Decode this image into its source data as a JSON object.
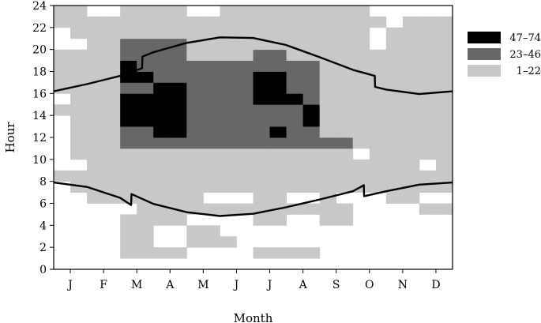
{
  "chart_data": {
    "type": "heatmap",
    "title": "",
    "xlabel": "Month",
    "ylabel": "Hour",
    "x_ticks": [
      "J",
      "F",
      "M",
      "A",
      "M",
      "J",
      "J",
      "A",
      "S",
      "O",
      "N",
      "D"
    ],
    "y_ticks": [
      0,
      2,
      4,
      6,
      8,
      10,
      12,
      14,
      16,
      18,
      20,
      22,
      24
    ],
    "xlim": [
      0,
      12
    ],
    "ylim": [
      0,
      24
    ],
    "hour_resolution": 1,
    "weeks_per_month": 2,
    "grid": false,
    "legend_position": "right",
    "legend": [
      {
        "label": "47–74",
        "color": "#000000",
        "level": 3
      },
      {
        "label": "23–46",
        "color": "#676767",
        "level": 2
      },
      {
        "label": "1–22",
        "color": "#c8c8c8",
        "level": 1
      }
    ],
    "levels_note": "0 = no data (white), 1 = 1–22, 2 = 23–46, 3 = 47–74",
    "grid_rows_hour_0_to_23": [
      "000000000000000000000000",
      "000011110000111100000000",
      "000011001110000000000000",
      "000011001100000000000000",
      "000011110000110011000000",
      "000001111111111111000011",
      "001111111000110010001100",
      "011111111111111111111111",
      "111111111111111111111111",
      "001111111111111111111101",
      "011111111111111111011111",
      "011122222222222222111111",
      "011122332222232211111111",
      "011133332222222311111111",
      "111133332222222311111111",
      "011133332222333211111111",
      "111122332222332211111111",
      "111133222222332211111111",
      "111132222222222211111111",
      "111122221111221111111111",
      "001122221111111111101111",
      "011111111111111111101111",
      "111111111111111111110111",
      "110011110011111111100000"
    ],
    "sunrise": {
      "x": [
        0,
        1,
        2,
        2.33,
        2.34,
        3,
        4,
        5,
        6,
        7,
        8,
        9,
        9.33,
        9.34,
        10,
        11,
        12
      ],
      "y": [
        7.9,
        7.5,
        6.5,
        5.85,
        6.85,
        5.95,
        5.2,
        4.85,
        5.05,
        5.65,
        6.35,
        7.1,
        7.65,
        6.65,
        7.1,
        7.7,
        7.9
      ]
    },
    "sunset": {
      "x": [
        0,
        1,
        2,
        2.66,
        2.67,
        3,
        4,
        5,
        6,
        7,
        8,
        9,
        9.66,
        9.67,
        10,
        11,
        12
      ],
      "y": [
        16.2,
        16.85,
        17.6,
        18.3,
        19.35,
        19.75,
        20.6,
        21.1,
        21.05,
        20.4,
        19.3,
        18.15,
        17.6,
        16.6,
        16.35,
        15.95,
        16.2
      ]
    }
  }
}
